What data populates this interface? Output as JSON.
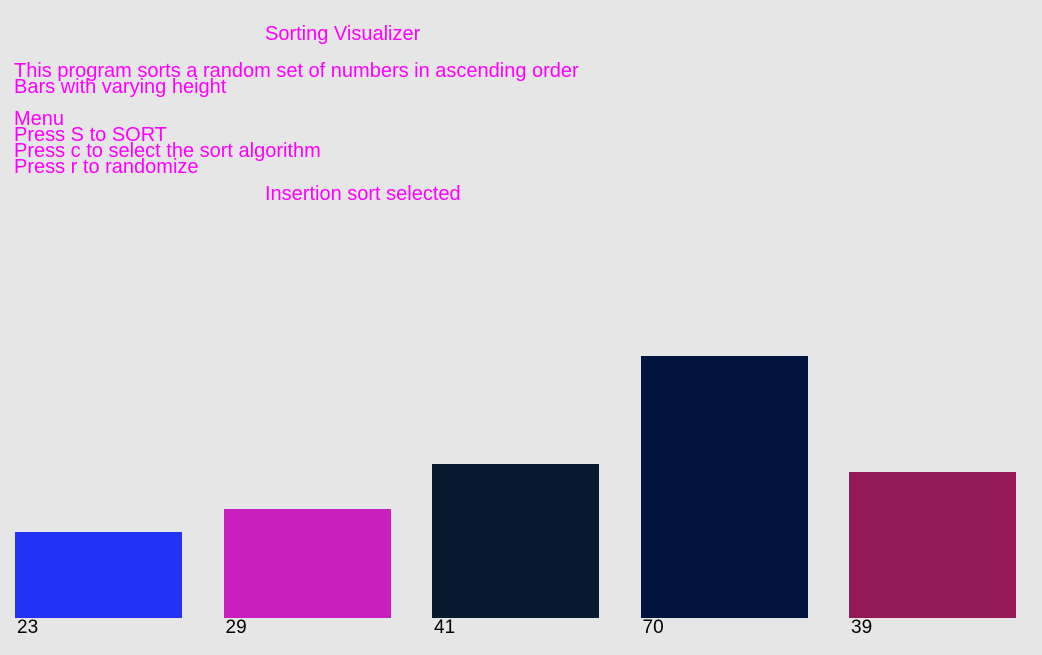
{
  "app": {
    "title": "Sorting Visualizer",
    "description_lines": [
      "This program sorts a random set of numbers in ascending order",
      "Bars with varying height"
    ],
    "menu_lines": [
      "Menu",
      "Press S to SORT",
      "Press c to select the sort algorithm",
      "Press r to randomize"
    ],
    "status": "Insertion sort selected"
  },
  "colors": {
    "background": "#e6e6e6",
    "text": "#ff00ff",
    "label": "#000000"
  },
  "chart_data": {
    "type": "bar",
    "values": [
      23,
      29,
      41,
      70,
      39
    ],
    "colors": [
      "#2233f5",
      "#c81fbf",
      "#081a30",
      "#00143f",
      "#931a57"
    ]
  }
}
